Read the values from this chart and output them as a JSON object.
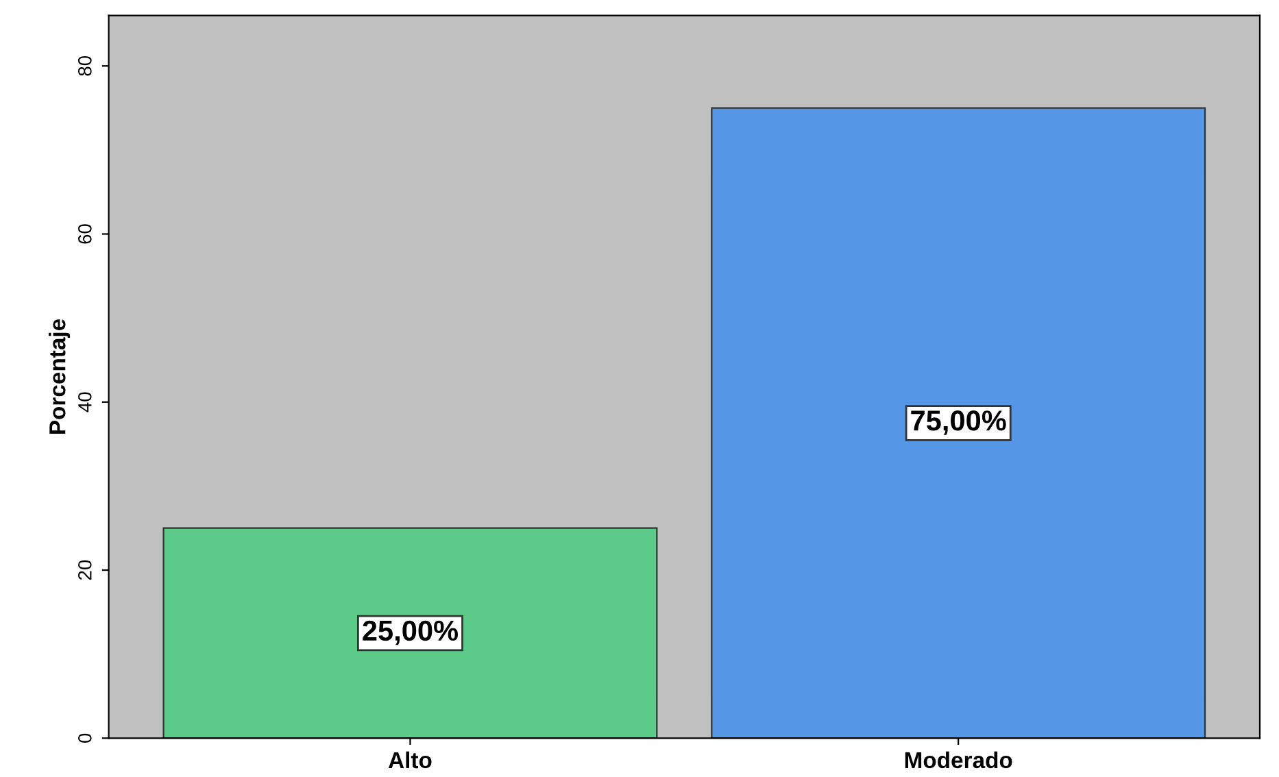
{
  "chart_data": {
    "type": "bar",
    "ylabel": "Porcentaje",
    "categories": [
      "Alto",
      "Moderado"
    ],
    "values": [
      25,
      75
    ],
    "colors": [
      "#5ccb8a",
      "#5596e6"
    ],
    "value_labels": [
      "25,00%",
      "75,00%"
    ],
    "ylim": [
      0,
      86
    ],
    "yticks": [
      0,
      20,
      40,
      60,
      80
    ],
    "grid": false
  }
}
